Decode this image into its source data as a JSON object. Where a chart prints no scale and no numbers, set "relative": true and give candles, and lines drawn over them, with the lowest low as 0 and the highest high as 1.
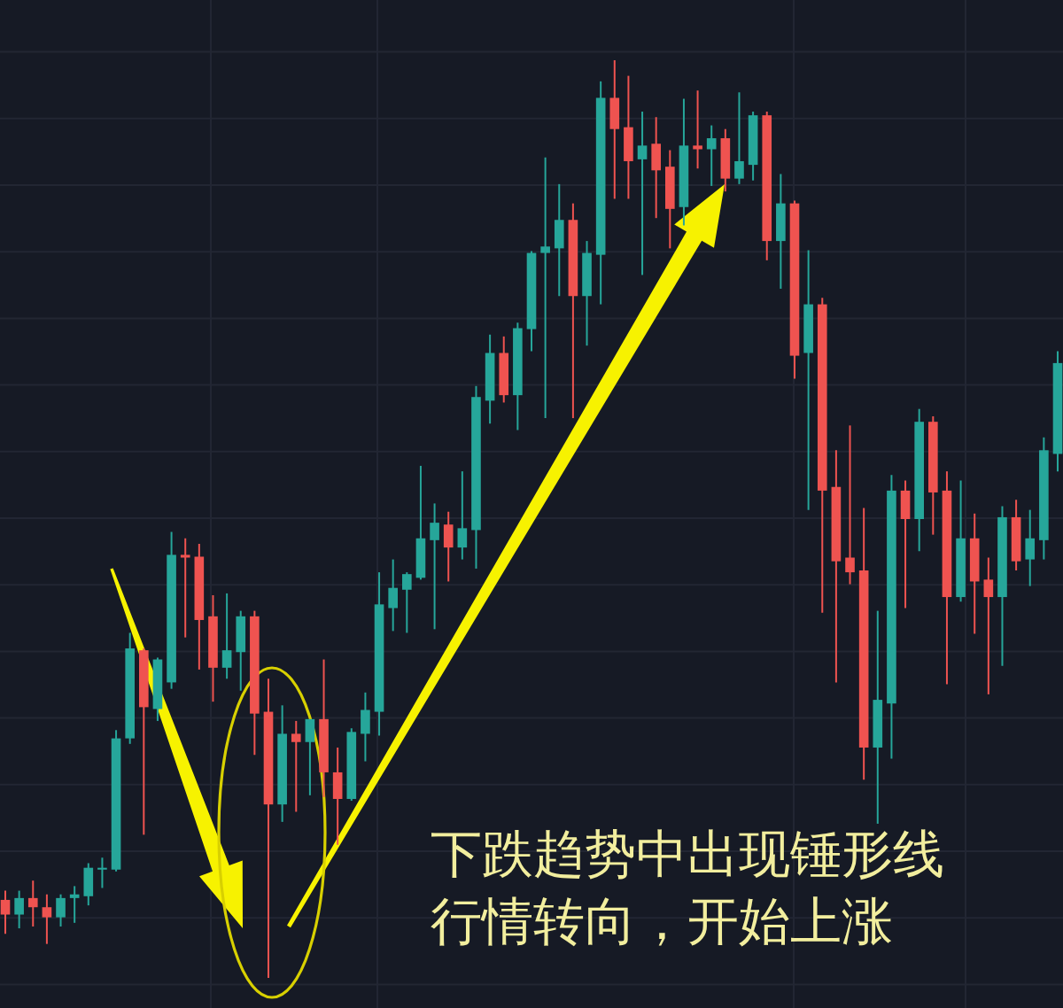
{
  "chart_data": {
    "type": "candlestick",
    "relative": true,
    "grid": true,
    "categories": [
      null,
      null,
      null,
      null,
      null,
      null,
      null,
      null,
      null,
      null,
      null,
      null,
      null,
      null,
      null,
      null,
      null,
      null,
      null,
      null,
      null,
      null,
      null,
      null,
      null,
      null,
      null,
      null,
      null,
      null,
      null,
      null,
      null,
      null,
      null,
      null,
      null,
      null,
      null,
      null,
      null,
      null,
      null,
      null,
      null,
      null,
      null,
      null,
      null,
      null,
      null,
      null,
      null,
      null,
      null,
      null,
      null,
      null,
      null,
      null,
      null,
      null,
      null,
      null,
      null,
      null,
      null,
      null,
      null,
      null,
      null,
      null,
      null,
      null,
      null,
      null,
      null
    ],
    "ohlc": [
      [
        0.085,
        0.095,
        0.048,
        0.069
      ],
      [
        0.069,
        0.095,
        0.054,
        0.087
      ],
      [
        0.087,
        0.106,
        0.056,
        0.077
      ],
      [
        0.077,
        0.091,
        0.037,
        0.066
      ],
      [
        0.066,
        0.091,
        0.056,
        0.087
      ],
      [
        0.087,
        0.1,
        0.06,
        0.091
      ],
      [
        0.089,
        0.125,
        0.079,
        0.12
      ],
      [
        0.118,
        0.131,
        0.098,
        0.12
      ],
      [
        0.118,
        0.27,
        0.116,
        0.261
      ],
      [
        0.261,
        0.376,
        0.255,
        0.359
      ],
      [
        0.357,
        0.359,
        0.156,
        0.295
      ],
      [
        0.293,
        0.349,
        0.28,
        0.347
      ],
      [
        0.322,
        0.486,
        0.315,
        0.461
      ],
      [
        0.461,
        0.479,
        0.371,
        0.458
      ],
      [
        0.459,
        0.473,
        0.336,
        0.39
      ],
      [
        0.394,
        0.417,
        0.301,
        0.338
      ],
      [
        0.338,
        0.419,
        0.326,
        0.357
      ],
      [
        0.355,
        0.4,
        0.313,
        0.394
      ],
      [
        0.394,
        0.4,
        0.243,
        0.288
      ],
      [
        0.29,
        0.326,
        0,
        0.189
      ],
      [
        0.189,
        0.297,
        0.17,
        0.266
      ],
      [
        0.266,
        0.28,
        0.181,
        0.257
      ],
      [
        0.257,
        0.282,
        0.199,
        0.282
      ],
      [
        0.282,
        0.347,
        0.197,
        0.224
      ],
      [
        0.224,
        0.251,
        0.145,
        0.195
      ],
      [
        0.195,
        0.272,
        0.193,
        0.268
      ],
      [
        0.266,
        0.311,
        0.236,
        0.292
      ],
      [
        0.29,
        0.442,
        0.264,
        0.407
      ],
      [
        0.403,
        0.456,
        0.378,
        0.425
      ],
      [
        0.423,
        0.442,
        0.376,
        0.44
      ],
      [
        0.436,
        0.558,
        0.434,
        0.479
      ],
      [
        0.477,
        0.517,
        0.38,
        0.496
      ],
      [
        0.494,
        0.508,
        0.432,
        0.469
      ],
      [
        0.469,
        0.552,
        0.456,
        0.49
      ],
      [
        0.488,
        0.645,
        0.446,
        0.633
      ],
      [
        0.629,
        0.701,
        0.604,
        0.681
      ],
      [
        0.681,
        0.699,
        0.627,
        0.635
      ],
      [
        0.635,
        0.714,
        0.597,
        0.708
      ],
      [
        0.707,
        0.792,
        0.683,
        0.79
      ],
      [
        0.79,
        0.894,
        0.61,
        0.797
      ],
      [
        0.795,
        0.865,
        0.743,
        0.826
      ],
      [
        0.826,
        0.844,
        0.61,
        0.743
      ],
      [
        0.743,
        0.803,
        0.689,
        0.79
      ],
      [
        0.788,
        0.977,
        0.734,
        0.959
      ],
      [
        0.959,
        1,
        0.849,
        0.925
      ],
      [
        0.927,
        0.983,
        0.849,
        0.89
      ],
      [
        0.892,
        0.944,
        0.766,
        0.907
      ],
      [
        0.909,
        0.938,
        0.828,
        0.88
      ],
      [
        0.884,
        0.902,
        0.795,
        0.838
      ],
      [
        0.84,
        0.958,
        0.82,
        0.907
      ],
      [
        0.907,
        0.967,
        0.882,
        0.903
      ],
      [
        0.903,
        0.929,
        0.863,
        0.915
      ],
      [
        0.915,
        0.925,
        0.857,
        0.871
      ],
      [
        0.871,
        0.965,
        0.865,
        0.89
      ],
      [
        0.886,
        0.944,
        0.869,
        0.94
      ],
      [
        0.94,
        0.944,
        0.782,
        0.803
      ],
      [
        0.803,
        0.876,
        0.751,
        0.844
      ],
      [
        0.844,
        0.847,
        0.653,
        0.678
      ],
      [
        0.681,
        0.793,
        0.51,
        0.734
      ],
      [
        0.734,
        0.741,
        0.398,
        0.531
      ],
      [
        0.535,
        0.575,
        0.322,
        0.454
      ],
      [
        0.458,
        0.602,
        0.429,
        0.442
      ],
      [
        0.444,
        0.512,
        0.216,
        0.251
      ],
      [
        0.251,
        0.4,
        0.168,
        0.303
      ],
      [
        0.299,
        0.548,
        0.239,
        0.531
      ],
      [
        0.531,
        0.542,
        0.403,
        0.5
      ],
      [
        0.5,
        0.62,
        0.465,
        0.606
      ],
      [
        0.606,
        0.612,
        0.483,
        0.529
      ],
      [
        0.531,
        0.552,
        0.32,
        0.415
      ],
      [
        0.415,
        0.542,
        0.41,
        0.479
      ],
      [
        0.479,
        0.506,
        0.375,
        0.432
      ],
      [
        0.434,
        0.458,
        0.309,
        0.415
      ],
      [
        0.415,
        0.514,
        0.34,
        0.502
      ],
      [
        0.502,
        0.521,
        0.444,
        0.454
      ],
      [
        0.456,
        0.51,
        0.427,
        0.479
      ],
      [
        0.477,
        0.589,
        0.456,
        0.575
      ],
      [
        0.571,
        0.683,
        0.552,
        0.67
      ]
    ],
    "colors": [
      "#ef5350",
      "#26a69a",
      "#ef5350",
      "#ef5350",
      "#26a69a",
      "#26a69a",
      "#26a69a",
      "#26a69a",
      "#26a69a",
      "#26a69a",
      "#ef5350",
      "#26a69a",
      "#26a69a",
      "#ef5350",
      "#ef5350",
      "#ef5350",
      "#26a69a",
      "#26a69a",
      "#ef5350",
      "#ef5350",
      "#26a69a",
      "#ef5350",
      "#26a69a",
      "#ef5350",
      "#ef5350",
      "#26a69a",
      "#26a69a",
      "#26a69a",
      "#26a69a",
      "#26a69a",
      "#26a69a",
      "#26a69a",
      "#ef5350",
      "#26a69a",
      "#26a69a",
      "#26a69a",
      "#ef5350",
      "#26a69a",
      "#26a69a",
      "#26a69a",
      "#26a69a",
      "#ef5350",
      "#26a69a",
      "#26a69a",
      "#ef5350",
      "#ef5350",
      "#26a69a",
      "#ef5350",
      "#ef5350",
      "#26a69a",
      "#ef5350",
      "#26a69a",
      "#ef5350",
      "#26a69a",
      "#26a69a",
      "#ef5350",
      "#26a69a",
      "#ef5350",
      "#26a69a",
      "#ef5350",
      "#ef5350",
      "#ef5350",
      "#ef5350",
      "#26a69a",
      "#26a69a",
      "#ef5350",
      "#26a69a",
      "#ef5350",
      "#ef5350",
      "#26a69a",
      "#ef5350",
      "#ef5350",
      "#26a69a",
      "#ef5350",
      "#26a69a",
      "#26a69a",
      "#26a69a"
    ],
    "annotations": [
      "下跌趋势中出现锤形线",
      "行情转向，开始上涨"
    ]
  }
}
